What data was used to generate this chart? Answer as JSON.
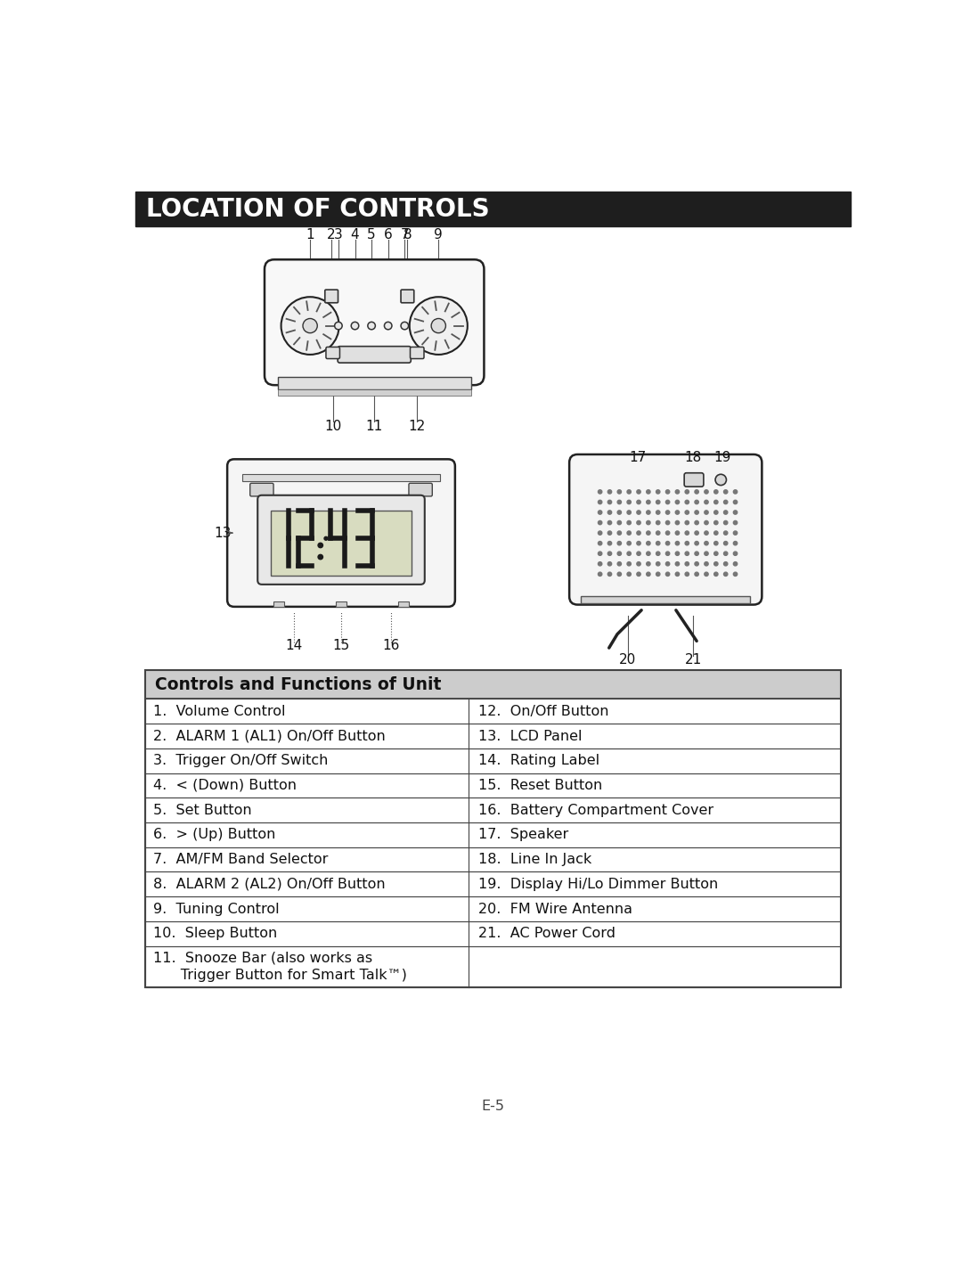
{
  "title": "LOCATION OF CONTROLS",
  "title_bg": "#1e1e1e",
  "title_color": "#ffffff",
  "title_fontsize": 20,
  "bg_color": "#ffffff",
  "table_header": "Controls and Functions of Unit",
  "table_header_bg": "#cccccc",
  "table_border": "#444444",
  "left_items": [
    "1.  Volume Control",
    "2.  ALARM 1 (AL1) On/Off Button",
    "3.  Trigger On/Off Switch",
    "4.  < (Down) Button",
    "5.  Set Button",
    "6.  > (Up) Button",
    "7.  AM/FM Band Selector",
    "8.  ALARM 2 (AL2) On/Off Button",
    "9.  Tuning Control",
    "10.  Sleep Button",
    "11.  Snooze Bar (also works as"
  ],
  "left_item_11b": "      Trigger Button for Smart Talk™)",
  "right_items": [
    "12.  On/Off Button",
    "13.  LCD Panel",
    "14.  Rating Label",
    "15.  Reset Button",
    "16.  Battery Compartment Cover",
    "17.  Speaker",
    "18.  Line In Jack",
    "19.  Display Hi/Lo Dimmer Button",
    "20.  FM Wire Antenna",
    "21.  AC Power Cord",
    ""
  ],
  "page_num": "E-5",
  "label_color": "#111111",
  "line_color": "#555555"
}
